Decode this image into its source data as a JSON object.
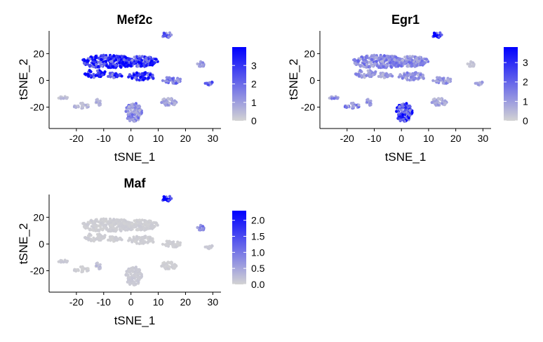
{
  "chart_data": [
    {
      "type": "scatter",
      "title": "Mef2c",
      "xlabel": "tSNE_1",
      "ylabel": "tSNE_2",
      "xlim": [
        -30,
        33
      ],
      "ylim": [
        -36,
        37
      ],
      "xticks": [
        -20,
        -10,
        0,
        10,
        20,
        30
      ],
      "xtick_labels": [
        "-20",
        "-10",
        "0",
        "10",
        "20",
        "30"
      ],
      "yticks": [
        -20,
        0,
        20
      ],
      "ytick_labels": [
        "-20",
        "0",
        "20"
      ],
      "colorbar": {
        "min": 0,
        "max": 4,
        "ticks": [
          0,
          1,
          2,
          3
        ],
        "tick_labels": [
          "0",
          "1",
          "2",
          "3"
        ],
        "low_color": "#d3d3d3",
        "high_color": "#0000ff"
      },
      "grid": false,
      "clusters": [
        {
          "cx": -8,
          "cy": 14,
          "rx": 10,
          "ry": 5,
          "value": 3.2
        },
        {
          "cx": 3,
          "cy": 14,
          "rx": 7,
          "ry": 4,
          "value": 2.9
        },
        {
          "cx": -13,
          "cy": 5,
          "rx": 4,
          "ry": 3,
          "value": 3.3
        },
        {
          "cx": 4,
          "cy": 3,
          "rx": 5,
          "ry": 3,
          "value": 3.0
        },
        {
          "cx": -6,
          "cy": 4,
          "rx": 3,
          "ry": 2,
          "value": 2.6
        },
        {
          "cx": 13,
          "cy": 34,
          "rx": 2,
          "ry": 2,
          "value": 1.8
        },
        {
          "cx": 25.5,
          "cy": 12,
          "rx": 1.5,
          "ry": 2,
          "value": 1.2
        },
        {
          "cx": 28.5,
          "cy": -2,
          "rx": 1.5,
          "ry": 1.5,
          "value": 2.0
        },
        {
          "cx": 15,
          "cy": 0,
          "rx": 3.5,
          "ry": 2.5,
          "value": 1.7
        },
        {
          "cx": 14,
          "cy": -16,
          "rx": 3,
          "ry": 3,
          "value": 0.9
        },
        {
          "cx": 1,
          "cy": -24,
          "rx": 3,
          "ry": 7,
          "value": 1.3
        },
        {
          "cx": -25,
          "cy": -13,
          "rx": 2,
          "ry": 1,
          "value": 0.4
        },
        {
          "cx": -18,
          "cy": -19,
          "rx": 3,
          "ry": 2,
          "value": 0.5
        },
        {
          "cx": -12,
          "cy": -17,
          "rx": 1,
          "ry": 3,
          "value": 0.6
        }
      ]
    },
    {
      "type": "scatter",
      "title": "Egr1",
      "xlabel": "tSNE_1",
      "ylabel": "tSNE_2",
      "xlim": [
        -30,
        33
      ],
      "ylim": [
        -36,
        37
      ],
      "xticks": [
        -20,
        -10,
        0,
        10,
        20,
        30
      ],
      "xtick_labels": [
        "-20",
        "-10",
        "0",
        "10",
        "20",
        "30"
      ],
      "yticks": [
        -20,
        0,
        20
      ],
      "ytick_labels": [
        "-20",
        "0",
        "20"
      ],
      "colorbar": {
        "min": 0,
        "max": 3.8,
        "ticks": [
          0,
          1,
          2,
          3
        ],
        "tick_labels": [
          "0",
          "1",
          "2",
          "3"
        ],
        "low_color": "#d3d3d3",
        "high_color": "#0000ff"
      },
      "grid": false,
      "clusters": [
        {
          "cx": -8,
          "cy": 14,
          "rx": 10,
          "ry": 5,
          "value": 1.3
        },
        {
          "cx": 3,
          "cy": 14,
          "rx": 7,
          "ry": 4,
          "value": 1.2
        },
        {
          "cx": -13,
          "cy": 5,
          "rx": 4,
          "ry": 3,
          "value": 1.0
        },
        {
          "cx": 4,
          "cy": 3,
          "rx": 5,
          "ry": 3,
          "value": 1.1
        },
        {
          "cx": -6,
          "cy": 4,
          "rx": 3,
          "ry": 2,
          "value": 0.9
        },
        {
          "cx": 13,
          "cy": 34,
          "rx": 2,
          "ry": 2,
          "value": 3.3
        },
        {
          "cx": 25.5,
          "cy": 12,
          "rx": 1.5,
          "ry": 2,
          "value": 0.3
        },
        {
          "cx": 28.5,
          "cy": -2,
          "rx": 1.5,
          "ry": 1.5,
          "value": 0.8
        },
        {
          "cx": 15,
          "cy": 0,
          "rx": 3.5,
          "ry": 2.5,
          "value": 1.1
        },
        {
          "cx": 14,
          "cy": -16,
          "rx": 3,
          "ry": 3,
          "value": 0.8
        },
        {
          "cx": 1,
          "cy": -24,
          "rx": 3,
          "ry": 7,
          "value": 2.7
        },
        {
          "cx": -25,
          "cy": -13,
          "rx": 2,
          "ry": 1,
          "value": 1.2
        },
        {
          "cx": -18,
          "cy": -19,
          "rx": 3,
          "ry": 2,
          "value": 1.3
        },
        {
          "cx": -12,
          "cy": -17,
          "rx": 1,
          "ry": 3,
          "value": 1.0
        }
      ]
    },
    {
      "type": "scatter",
      "title": "Maf",
      "xlabel": "tSNE_1",
      "ylabel": "tSNE_2",
      "xlim": [
        -30,
        33
      ],
      "ylim": [
        -36,
        37
      ],
      "xticks": [
        -20,
        -10,
        0,
        10,
        20,
        30
      ],
      "xtick_labels": [
        "-20",
        "-10",
        "0",
        "10",
        "20",
        "30"
      ],
      "yticks": [
        -20,
        0,
        20
      ],
      "ytick_labels": [
        "-20",
        "0",
        "20"
      ],
      "colorbar": {
        "min": 0,
        "max": 2.3,
        "ticks": [
          0,
          0.5,
          1,
          1.5,
          2
        ],
        "tick_labels": [
          "0.0",
          "0.5",
          "1.0",
          "1.5",
          "2.0"
        ],
        "low_color": "#d3d3d3",
        "high_color": "#0000ff"
      },
      "grid": false,
      "clusters": [
        {
          "cx": -8,
          "cy": 14,
          "rx": 10,
          "ry": 5,
          "value": 0.05
        },
        {
          "cx": 3,
          "cy": 14,
          "rx": 7,
          "ry": 4,
          "value": 0.05
        },
        {
          "cx": -13,
          "cy": 5,
          "rx": 4,
          "ry": 3,
          "value": 0.05
        },
        {
          "cx": 4,
          "cy": 3,
          "rx": 5,
          "ry": 3,
          "value": 0.05
        },
        {
          "cx": -6,
          "cy": 4,
          "rx": 3,
          "ry": 2,
          "value": 0.05
        },
        {
          "cx": 13,
          "cy": 34,
          "rx": 2,
          "ry": 2,
          "value": 2.1
        },
        {
          "cx": 25.5,
          "cy": 12,
          "rx": 1.5,
          "ry": 2,
          "value": 0.9
        },
        {
          "cx": 28.5,
          "cy": -2,
          "rx": 1.5,
          "ry": 1.5,
          "value": 0.1
        },
        {
          "cx": 15,
          "cy": 0,
          "rx": 3.5,
          "ry": 2.5,
          "value": 0.05
        },
        {
          "cx": 14,
          "cy": -16,
          "rx": 3,
          "ry": 3,
          "value": 0.05
        },
        {
          "cx": 1,
          "cy": -24,
          "rx": 3,
          "ry": 7,
          "value": 0.1
        },
        {
          "cx": -25,
          "cy": -13,
          "rx": 2,
          "ry": 1,
          "value": 0.1
        },
        {
          "cx": -18,
          "cy": -19,
          "rx": 3,
          "ry": 2,
          "value": 0.05
        },
        {
          "cx": -12,
          "cy": -17,
          "rx": 1,
          "ry": 3,
          "value": 0.2
        }
      ]
    }
  ]
}
